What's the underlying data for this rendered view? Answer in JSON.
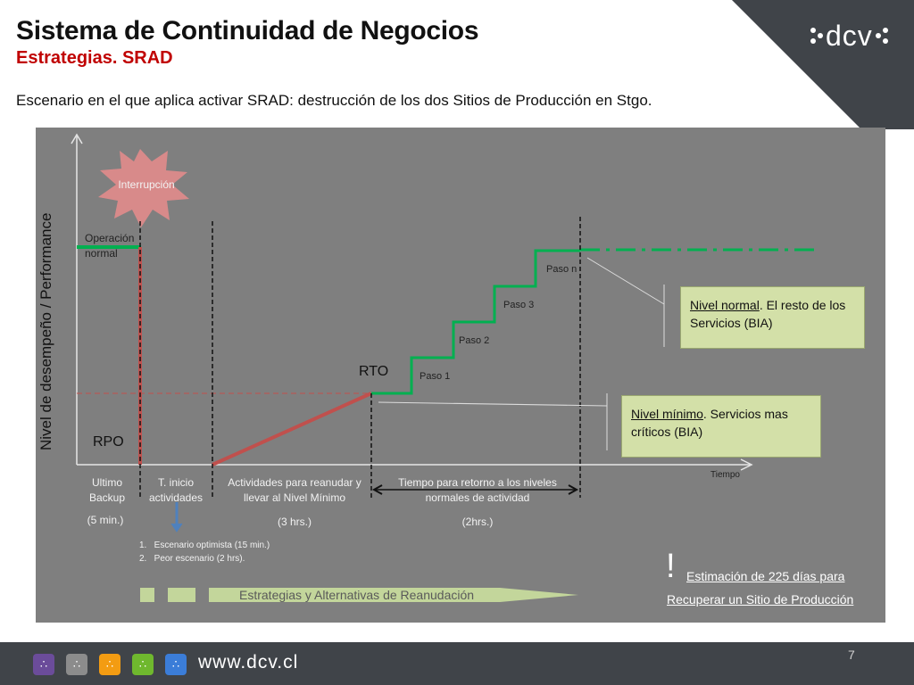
{
  "header": {
    "title": "Sistema de Continuidad de Negocios",
    "subtitle": "Estrategias. SRAD",
    "description": "Escenario en el que aplica activar SRAD: destrucción de los dos Sitios de Producción en Stgo.",
    "logo_text": ":dcv:"
  },
  "diagram": {
    "y_axis_label": "Nivel de desempeño / Performance",
    "x_axis_label": "Tiempo",
    "interruption": "Interrupción",
    "normal_operation": "Operación normal",
    "rpo": "RPO",
    "rto": "RTO",
    "steps": [
      "Paso 1",
      "Paso 2",
      "Paso 3",
      "Paso n"
    ],
    "phases": [
      {
        "label": "Ultimo Backup",
        "value": "(5 min.)"
      },
      {
        "label": "T. inicio actividades",
        "value": ""
      },
      {
        "label": "Actividades para reanudar y llevar al Nivel Mínimo",
        "value": "(3 hrs.)"
      },
      {
        "label": "Tiempo para retorno a los niveles normales de actividad",
        "value": "(2hrs.)"
      }
    ],
    "scenarios": [
      "1.   Escenario optimista (15 min.)",
      "2.   Peor escenario (2 hrs)."
    ],
    "box_normal": {
      "title": "Nivel normal",
      "text": ". El resto de los Servicios (BIA)"
    },
    "box_minimum": {
      "title": "Nivel mínimo",
      "text": ". Servicios mas críticos (BIA)"
    },
    "strategies_arrow": "Estrategias y Alternativas de Reanudación",
    "exclamation": "!",
    "estimate_line1": "Estimación de 225 días para",
    "estimate_line2": "Recuperar un Sitio de Producción"
  },
  "footer": {
    "url": "www.dcv.cl",
    "page_number": "7",
    "icons": [
      "dcv-purple-icon",
      "dcv-gray-icon",
      "dcv-orange-icon",
      "dcv-green-icon",
      "dcv-blue-icon"
    ]
  },
  "colors": {
    "title_red": "#c00000",
    "panel_gray": "#7f7f7f",
    "red_line": "#c0504d",
    "green_line": "#00b050",
    "box_fill": "#d3e0a8",
    "footer_dark": "#404449"
  }
}
